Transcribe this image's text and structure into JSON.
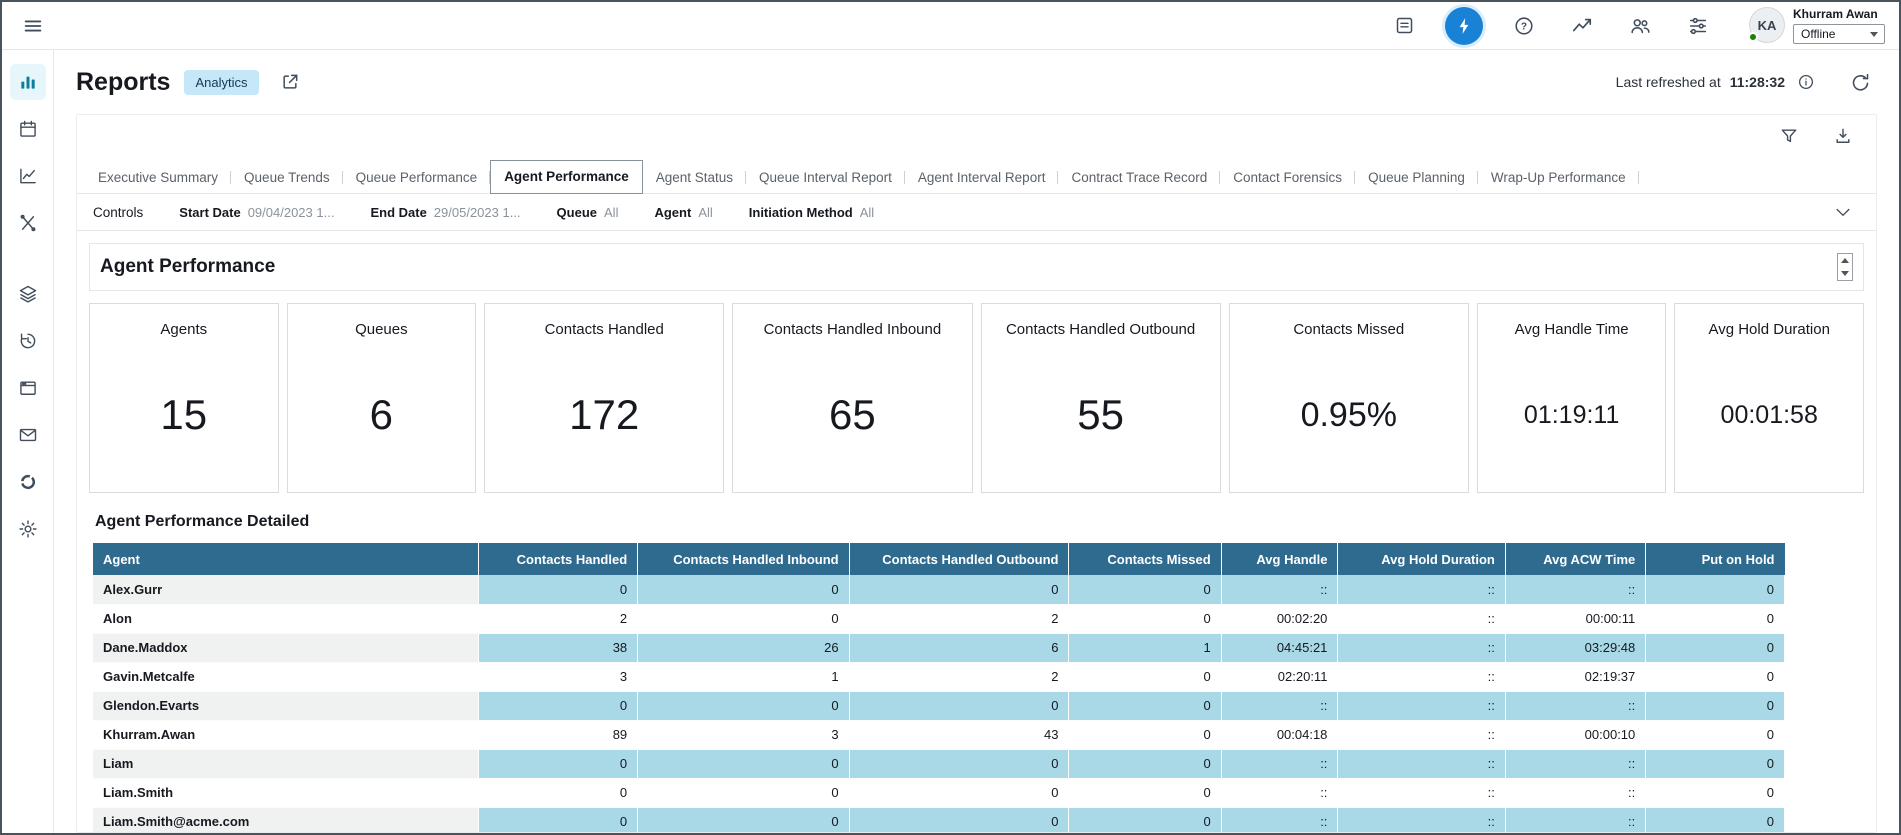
{
  "colors": {
    "accent": "#1a82d6",
    "badge_bg": "#c6e7f8",
    "badge_text": "#103a56",
    "table_header_bg": "#2f6a8f",
    "cell_blue": "#a9d8e7",
    "row_gray": "#f0f1f1",
    "sidebar_active": "#0d7f9b",
    "status_green": "#1d8102"
  },
  "topbar": {
    "icons": [
      "hamburger-menu-icon",
      "notes-icon",
      "lightning-bolt-icon",
      "help-icon",
      "trend-chart-icon",
      "users-icon",
      "sliders-icon"
    ],
    "user": {
      "initials": "KA",
      "name": "Khurram Awan",
      "status": "Offline"
    }
  },
  "sidebar": {
    "icons": [
      "bar-chart-icon",
      "calendar-icon",
      "line-chart-icon",
      "optimization-icon",
      "layers-icon",
      "history-icon",
      "window-icon",
      "mail-icon",
      "doughnut-chart-icon",
      "gear-icon"
    ]
  },
  "header": {
    "title": "Reports",
    "badge": "Analytics",
    "last_refreshed_label": "Last refreshed at",
    "last_refreshed_time": "11:28:32"
  },
  "tabs": [
    {
      "label": "Executive Summary"
    },
    {
      "label": "Queue Trends"
    },
    {
      "label": "Queue Performance"
    },
    {
      "label": "Agent Performance",
      "active": true
    },
    {
      "label": "Agent Status"
    },
    {
      "label": "Queue Interval Report"
    },
    {
      "label": "Agent Interval Report"
    },
    {
      "label": "Contract Trace Record"
    },
    {
      "label": "Contact Forensics"
    },
    {
      "label": "Queue Planning"
    },
    {
      "label": "Wrap-Up Performance"
    }
  ],
  "controls": {
    "label": "Controls",
    "filters": [
      {
        "label": "Start Date",
        "value": "09/04/2023 1..."
      },
      {
        "label": "End Date",
        "value": "29/05/2023 1..."
      },
      {
        "label": "Queue",
        "value": "All"
      },
      {
        "label": "Agent",
        "value": "All"
      },
      {
        "label": "Initiation Method",
        "value": "All"
      }
    ]
  },
  "section_title": "Agent Performance",
  "kpis": [
    {
      "label": "Agents",
      "value": "15"
    },
    {
      "label": "Queues",
      "value": "6"
    },
    {
      "label": "Contacts Handled",
      "value": "172"
    },
    {
      "label": "Contacts Handled Inbound",
      "value": "65"
    },
    {
      "label": "Contacts Handled Outbound",
      "value": "55"
    },
    {
      "label": "Contacts Missed",
      "value": "0.95%"
    },
    {
      "label": "Avg Handle Time",
      "value": "01:19:11"
    },
    {
      "label": "Avg Hold Duration",
      "value": "00:01:58"
    }
  ],
  "table": {
    "title": "Agent Performance Detailed",
    "columns": [
      "Agent",
      "Contacts Handled",
      "Contacts Handled Inbound",
      "Contacts Handled Outbound",
      "Contacts Missed",
      "Avg Handle",
      "Avg Hold Duration",
      "Avg ACW Time",
      "Put on Hold"
    ],
    "rows": [
      [
        "Alex.Gurr",
        "0",
        "0",
        "0",
        "0",
        "::",
        "::",
        "::",
        "0"
      ],
      [
        "Alon",
        "2",
        "0",
        "2",
        "0",
        "00:02:20",
        "::",
        "00:00:11",
        "0"
      ],
      [
        "Dane.Maddox",
        "38",
        "26",
        "6",
        "1",
        "04:45:21",
        "::",
        "03:29:48",
        "0"
      ],
      [
        "Gavin.Metcalfe",
        "3",
        "1",
        "2",
        "0",
        "02:20:11",
        "::",
        "02:19:37",
        "0"
      ],
      [
        "Glendon.Evarts",
        "0",
        "0",
        "0",
        "0",
        "::",
        "::",
        "::",
        "0"
      ],
      [
        "Khurram.Awan",
        "89",
        "3",
        "43",
        "0",
        "00:04:18",
        "::",
        "00:00:10",
        "0"
      ],
      [
        "Liam",
        "0",
        "0",
        "0",
        "0",
        "::",
        "::",
        "::",
        "0"
      ],
      [
        "Liam.Smith",
        "0",
        "0",
        "0",
        "0",
        "::",
        "::",
        "::",
        "0"
      ],
      [
        "Liam.Smith@acme.com",
        "0",
        "0",
        "0",
        "0",
        "::",
        "::",
        "::",
        "0"
      ]
    ]
  }
}
